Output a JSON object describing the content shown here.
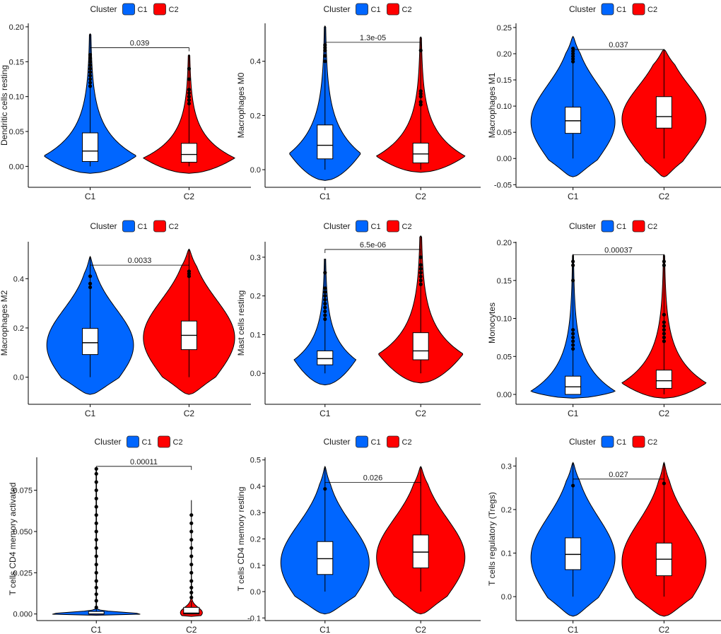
{
  "colors": {
    "C1": "#0066ff",
    "C2": "#ff0000"
  },
  "chart_data": [
    {
      "type": "violin",
      "ylabel": "Dendritic cells resting",
      "legend_title": "Cluster",
      "legend_items": [
        "C1",
        "C2"
      ],
      "categories": [
        "C1",
        "C2"
      ],
      "ylim": [
        -0.03,
        0.205
      ],
      "yticks": [
        0,
        0.05,
        0.1,
        0.15,
        0.2
      ],
      "ytick_labels": [
        "0.00",
        "0.05",
        "0.10",
        "0.15",
        "0.20"
      ],
      "pvalue": "0.039",
      "bracket_y": 0.17,
      "groups": [
        {
          "name": "C1",
          "min": 0.0,
          "q1": 0.007,
          "median": 0.022,
          "q3": 0.048,
          "whisker_high": 0.19,
          "whisker_low": 0.0,
          "violin_min": -0.01,
          "violin_max": 0.19,
          "mode": 0.015,
          "width_scale": 1.0,
          "shape": "skew",
          "outliers": [
            0.115,
            0.12,
            0.125,
            0.13,
            0.135,
            0.14,
            0.145,
            0.15,
            0.155,
            0.16
          ]
        },
        {
          "name": "C2",
          "min": 0.0,
          "q1": 0.006,
          "median": 0.017,
          "q3": 0.033,
          "whisker_high": 0.16,
          "whisker_low": 0.0,
          "violin_min": -0.01,
          "violin_max": 0.16,
          "mode": 0.012,
          "width_scale": 1.0,
          "shape": "skew",
          "outliers": [
            0.09,
            0.095,
            0.1,
            0.105,
            0.11,
            0.125,
            0.14
          ]
        }
      ]
    },
    {
      "type": "violin",
      "ylabel": "Macrophages M0",
      "legend_title": "Cluster",
      "legend_items": [
        "C1",
        "C2"
      ],
      "categories": [
        "C1",
        "C2"
      ],
      "ylim": [
        -0.065,
        0.54
      ],
      "yticks": [
        0,
        0.2,
        0.4
      ],
      "ytick_labels": [
        "0.0",
        "0.2",
        "0.4"
      ],
      "pvalue": "1.3e-05",
      "bracket_y": 0.47,
      "groups": [
        {
          "name": "C1",
          "min": 0.0,
          "q1": 0.04,
          "median": 0.09,
          "q3": 0.165,
          "whisker_high": 0.53,
          "whisker_low": 0.0,
          "violin_min": -0.04,
          "violin_max": 0.53,
          "mode": 0.06,
          "width_scale": 0.8,
          "shape": "skew",
          "outliers": [
            0.4,
            0.42,
            0.44,
            0.45,
            0.46
          ]
        },
        {
          "name": "C2",
          "min": 0.0,
          "q1": 0.025,
          "median": 0.058,
          "q3": 0.098,
          "whisker_high": 0.49,
          "whisker_low": 0.0,
          "violin_min": -0.01,
          "violin_max": 0.49,
          "mode": 0.05,
          "width_scale": 1.0,
          "shape": "skew",
          "outliers": [
            0.24,
            0.25,
            0.27,
            0.28,
            0.29,
            0.44
          ]
        }
      ]
    },
    {
      "type": "violin",
      "ylabel": "Macrophages M1",
      "legend_title": "Cluster",
      "legend_items": [
        "C1",
        "C2"
      ],
      "categories": [
        "C1",
        "C2"
      ],
      "ylim": [
        -0.055,
        0.258
      ],
      "yticks": [
        -0.05,
        0,
        0.05,
        0.1,
        0.15,
        0.2,
        0.25
      ],
      "ytick_labels": [
        "-0.05",
        "0.00",
        "0.05",
        "0.10",
        "0.15",
        "0.20",
        "0.25"
      ],
      "pvalue": "0.037",
      "bracket_y": 0.208,
      "groups": [
        {
          "name": "C1",
          "min": 0.0,
          "q1": 0.048,
          "median": 0.072,
          "q3": 0.098,
          "whisker_high": 0.2,
          "whisker_low": 0.0,
          "violin_min": -0.035,
          "violin_max": 0.233,
          "mode": 0.07,
          "width_scale": 1.0,
          "shape": "sym",
          "outliers": [
            0.185,
            0.19,
            0.195,
            0.2,
            0.205,
            0.21
          ]
        },
        {
          "name": "C2",
          "min": 0.0,
          "q1": 0.058,
          "median": 0.08,
          "q3": 0.118,
          "whisker_high": 0.208,
          "whisker_low": 0.0,
          "violin_min": -0.035,
          "violin_max": 0.208,
          "mode": 0.075,
          "width_scale": 1.0,
          "shape": "sym",
          "outliers": []
        }
      ]
    },
    {
      "type": "violin",
      "ylabel": "Macrophages M2",
      "legend_title": "Cluster",
      "legend_items": [
        "C1",
        "C2"
      ],
      "categories": [
        "C1",
        "C2"
      ],
      "ylim": [
        -0.11,
        0.55
      ],
      "yticks": [
        0,
        0.2,
        0.4
      ],
      "ytick_labels": [
        "0.0",
        "0.2",
        "0.4"
      ],
      "pvalue": "0.0033",
      "bracket_y": 0.455,
      "groups": [
        {
          "name": "C1",
          "min": 0.0,
          "q1": 0.092,
          "median": 0.14,
          "q3": 0.198,
          "whisker_high": 0.49,
          "whisker_low": 0.0,
          "violin_min": -0.07,
          "violin_max": 0.49,
          "mode": 0.13,
          "width_scale": 0.95,
          "shape": "sym",
          "outliers": [
            0.365,
            0.38,
            0.41
          ]
        },
        {
          "name": "C2",
          "min": 0.0,
          "q1": 0.112,
          "median": 0.17,
          "q3": 0.228,
          "whisker_high": 0.52,
          "whisker_low": 0.0,
          "violin_min": -0.07,
          "violin_max": 0.52,
          "mode": 0.16,
          "width_scale": 1.0,
          "shape": "sym",
          "outliers": [
            0.41,
            0.42,
            0.43
          ]
        }
      ]
    },
    {
      "type": "violin",
      "ylabel": "Mast cells resting",
      "legend_title": "Cluster",
      "legend_items": [
        "C1",
        "C2"
      ],
      "categories": [
        "C1",
        "C2"
      ],
      "ylim": [
        -0.08,
        0.34
      ],
      "yticks": [
        0,
        0.1,
        0.2,
        0.3
      ],
      "ytick_labels": [
        "0.0",
        "0.1",
        "0.2",
        "0.3"
      ],
      "pvalue": "6.5e-06",
      "bracket_y": 0.32,
      "groups": [
        {
          "name": "C1",
          "min": 0.0,
          "q1": 0.022,
          "median": 0.038,
          "q3": 0.058,
          "whisker_high": 0.295,
          "whisker_low": 0.0,
          "violin_min": -0.03,
          "violin_max": 0.295,
          "mode": 0.035,
          "width_scale": 0.7,
          "shape": "skew",
          "outliers": [
            0.14,
            0.15,
            0.16,
            0.17,
            0.18,
            0.19,
            0.2,
            0.21,
            0.22,
            0.26
          ]
        },
        {
          "name": "C2",
          "min": 0.0,
          "q1": 0.035,
          "median": 0.058,
          "q3": 0.105,
          "whisker_high": 0.355,
          "whisker_low": 0.0,
          "violin_min": -0.025,
          "violin_max": 0.355,
          "mode": 0.05,
          "width_scale": 0.95,
          "shape": "skew",
          "outliers": [
            0.23,
            0.24,
            0.25,
            0.26,
            0.27,
            0.28,
            0.3
          ]
        }
      ]
    },
    {
      "type": "violin",
      "ylabel": "Monocytes",
      "legend_title": "Cluster",
      "legend_items": [
        "C1",
        "C2"
      ],
      "categories": [
        "C1",
        "C2"
      ],
      "ylim": [
        -0.013,
        0.201
      ],
      "yticks": [
        0,
        0.05,
        0.1,
        0.15,
        0.2
      ],
      "ytick_labels": [
        "0.00",
        "0.05",
        "0.10",
        "0.15",
        "0.20"
      ],
      "pvalue": "0.00037",
      "bracket_y": 0.184,
      "groups": [
        {
          "name": "C1",
          "min": 0.0,
          "q1": 0.0,
          "median": 0.01,
          "q3": 0.024,
          "whisker_high": 0.184,
          "whisker_low": 0.0,
          "violin_min": -0.005,
          "violin_max": 0.184,
          "mode": 0.004,
          "width_scale": 1.0,
          "shape": "skew",
          "outliers": [
            0.06,
            0.065,
            0.07,
            0.075,
            0.08,
            0.085,
            0.15,
            0.17,
            0.175
          ]
        },
        {
          "name": "C2",
          "min": 0.0,
          "q1": 0.008,
          "median": 0.018,
          "q3": 0.032,
          "whisker_high": 0.184,
          "whisker_low": 0.0,
          "violin_min": -0.005,
          "violin_max": 0.184,
          "mode": 0.015,
          "width_scale": 1.0,
          "shape": "skew",
          "outliers": [
            0.07,
            0.075,
            0.08,
            0.085,
            0.09,
            0.095,
            0.105,
            0.17,
            0.175
          ]
        }
      ]
    },
    {
      "type": "violin",
      "ylabel": "T cells CD4 memory activated",
      "legend_title": "Cluster",
      "legend_items": [
        "C1",
        "C2"
      ],
      "categories": [
        "C1",
        "C2"
      ],
      "ylim": [
        -0.004,
        0.095
      ],
      "yticks": [
        0,
        0.025,
        0.05,
        0.075
      ],
      "ytick_labels": [
        "0.000",
        "0.025",
        "0.050",
        "0.075"
      ],
      "pvalue": "0.00011",
      "bracket_y": 0.0895,
      "groups": [
        {
          "name": "C1",
          "min": 0.0,
          "q1": 0.0,
          "median": 0.0,
          "q3": 0.0015,
          "whisker_high": 0.0035,
          "whisker_low": 0.0,
          "violin_min": -0.0008,
          "violin_max": 0.088,
          "mode": 0.0,
          "width_scale": 1.0,
          "shape": "spike",
          "outliers": [
            0.004,
            0.008,
            0.012,
            0.016,
            0.02,
            0.025,
            0.03,
            0.035,
            0.04,
            0.045,
            0.05,
            0.055,
            0.06,
            0.065,
            0.07,
            0.075,
            0.08,
            0.085,
            0.088
          ]
        },
        {
          "name": "C2",
          "min": 0.0,
          "q1": 0.0,
          "median": 0.0005,
          "q3": 0.004,
          "whisker_high": 0.008,
          "whisker_low": 0.0,
          "violin_min": -0.0015,
          "violin_max": 0.069,
          "mode": 0.0008,
          "width_scale": 0.25,
          "shape": "spike2",
          "outliers": [
            0.01,
            0.013,
            0.016,
            0.02,
            0.025,
            0.03,
            0.035,
            0.04,
            0.045,
            0.05,
            0.055,
            0.06
          ]
        }
      ]
    },
    {
      "type": "violin",
      "ylabel": "T cells CD4 memory resting",
      "legend_title": "Cluster",
      "legend_items": [
        "C1",
        "C2"
      ],
      "categories": [
        "C1",
        "C2"
      ],
      "ylim": [
        -0.11,
        0.51
      ],
      "yticks": [
        -0.1,
        0,
        0.1,
        0.2,
        0.3,
        0.4,
        0.5
      ],
      "ytick_labels": [
        "-0.1",
        "0.0",
        "0.1",
        "0.2",
        "0.3",
        "0.4",
        "0.5"
      ],
      "pvalue": "0.026",
      "bracket_y": 0.415,
      "groups": [
        {
          "name": "C1",
          "min": 0.0,
          "q1": 0.065,
          "median": 0.125,
          "q3": 0.19,
          "whisker_high": 0.475,
          "whisker_low": 0.0,
          "violin_min": -0.085,
          "violin_max": 0.475,
          "mode": 0.11,
          "width_scale": 1.0,
          "shape": "sym",
          "outliers": [
            0.39
          ]
        },
        {
          "name": "C2",
          "min": 0.0,
          "q1": 0.09,
          "median": 0.15,
          "q3": 0.215,
          "whisker_high": 0.475,
          "whisker_low": 0.0,
          "violin_min": -0.085,
          "violin_max": 0.475,
          "mode": 0.13,
          "width_scale": 1.0,
          "shape": "sym",
          "outliers": []
        }
      ]
    },
    {
      "type": "violin",
      "ylabel": "T cells regulatory (Tregs)",
      "legend_title": "Cluster",
      "legend_items": [
        "C1",
        "C2"
      ],
      "categories": [
        "C1",
        "C2"
      ],
      "ylim": [
        -0.055,
        0.32
      ],
      "yticks": [
        0,
        0.1,
        0.2,
        0.3
      ],
      "ytick_labels": [
        "0.0",
        "0.1",
        "0.2",
        "0.3"
      ],
      "pvalue": "0.027",
      "bracket_y": 0.27,
      "groups": [
        {
          "name": "C1",
          "min": 0.0,
          "q1": 0.062,
          "median": 0.097,
          "q3": 0.135,
          "whisker_high": 0.308,
          "whisker_low": 0.0,
          "violin_min": -0.045,
          "violin_max": 0.308,
          "mode": 0.09,
          "width_scale": 1.0,
          "shape": "sym",
          "outliers": [
            0.255
          ]
        },
        {
          "name": "C2",
          "min": 0.0,
          "q1": 0.048,
          "median": 0.086,
          "q3": 0.123,
          "whisker_high": 0.308,
          "whisker_low": 0.0,
          "violin_min": -0.045,
          "violin_max": 0.308,
          "mode": 0.08,
          "width_scale": 1.0,
          "shape": "sym",
          "outliers": [
            0.26
          ]
        }
      ]
    }
  ]
}
